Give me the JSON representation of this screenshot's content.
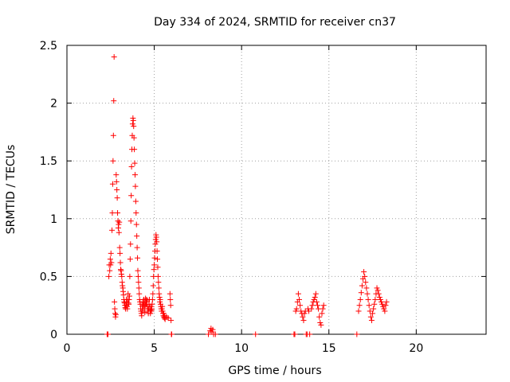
{
  "chart_data": {
    "type": "scatter",
    "title": "Day 334 of 2024, SRMTID for receiver cn37",
    "xlabel": "GPS time / hours",
    "ylabel": "SRMTID / TECUs",
    "xlim": [
      0,
      24
    ],
    "ylim": [
      0,
      2.5
    ],
    "xticks": [
      0,
      5,
      10,
      15,
      20
    ],
    "xtick_labels": [
      "0",
      "5",
      "10",
      "15",
      "20"
    ],
    "yticks": [
      0,
      0.5,
      1,
      1.5,
      2,
      2.5
    ],
    "ytick_labels": [
      "0",
      "0.5",
      "1",
      "1.5",
      "2",
      "2.5"
    ],
    "grid": true,
    "marker": "+",
    "color": "#ff0000",
    "series": [
      {
        "points": [
          [
            2.3,
            0.0
          ],
          [
            2.35,
            0.0
          ],
          [
            2.4,
            0.5
          ],
          [
            2.42,
            0.6
          ],
          [
            2.45,
            0.55
          ],
          [
            2.48,
            0.65
          ],
          [
            2.5,
            0.6
          ],
          [
            2.52,
            0.7
          ],
          [
            2.55,
            0.62
          ],
          [
            2.58,
            0.9
          ],
          [
            2.6,
            1.05
          ],
          [
            2.62,
            1.3
          ],
          [
            2.64,
            1.5
          ],
          [
            2.66,
            1.72
          ],
          [
            2.68,
            2.02
          ],
          [
            2.7,
            2.4
          ],
          [
            2.72,
            0.28
          ],
          [
            2.74,
            0.22
          ],
          [
            2.76,
            0.18
          ],
          [
            2.78,
            0.15
          ],
          [
            2.8,
            0.17
          ],
          [
            2.82,
            1.38
          ],
          [
            2.84,
            1.32
          ],
          [
            2.86,
            1.25
          ],
          [
            2.88,
            1.18
          ],
          [
            2.9,
            1.05
          ],
          [
            2.92,
            0.98
          ],
          [
            2.94,
            0.92
          ],
          [
            2.96,
            0.95
          ],
          [
            2.98,
            0.88
          ],
          [
            3.0,
            0.97
          ],
          [
            3.02,
            0.75
          ],
          [
            3.04,
            0.7
          ],
          [
            3.06,
            0.62
          ],
          [
            3.08,
            0.56
          ],
          [
            3.1,
            0.55
          ],
          [
            3.12,
            0.52
          ],
          [
            3.14,
            0.5
          ],
          [
            3.16,
            0.45
          ],
          [
            3.18,
            0.42
          ],
          [
            3.2,
            0.4
          ],
          [
            3.22,
            0.37
          ],
          [
            3.24,
            0.34
          ],
          [
            3.26,
            0.3
          ],
          [
            3.28,
            0.28
          ],
          [
            3.3,
            0.27
          ],
          [
            3.32,
            0.25
          ],
          [
            3.34,
            0.23
          ],
          [
            3.36,
            0.22
          ],
          [
            3.38,
            0.25
          ],
          [
            3.4,
            0.3
          ],
          [
            3.42,
            0.28
          ],
          [
            3.44,
            0.24
          ],
          [
            3.46,
            0.22
          ],
          [
            3.48,
            0.3
          ],
          [
            3.5,
            0.35
          ],
          [
            3.52,
            0.27
          ],
          [
            3.54,
            0.26
          ],
          [
            3.56,
            0.3
          ],
          [
            3.58,
            0.33
          ],
          [
            3.6,
            0.5
          ],
          [
            3.62,
            0.65
          ],
          [
            3.64,
            0.78
          ],
          [
            3.66,
            0.98
          ],
          [
            3.68,
            1.2
          ],
          [
            3.7,
            1.45
          ],
          [
            3.72,
            1.6
          ],
          [
            3.74,
            1.72
          ],
          [
            3.76,
            1.82
          ],
          [
            3.78,
            1.87
          ],
          [
            3.8,
            1.85
          ],
          [
            3.82,
            1.8
          ],
          [
            3.84,
            1.7
          ],
          [
            3.86,
            1.6
          ],
          [
            3.88,
            1.48
          ],
          [
            3.9,
            1.38
          ],
          [
            3.92,
            1.28
          ],
          [
            3.94,
            1.15
          ],
          [
            3.96,
            1.05
          ],
          [
            3.98,
            0.95
          ],
          [
            4.0,
            0.85
          ],
          [
            4.02,
            0.75
          ],
          [
            4.04,
            0.66
          ],
          [
            4.06,
            0.55
          ],
          [
            4.08,
            0.5
          ],
          [
            4.1,
            0.45
          ],
          [
            4.12,
            0.4
          ],
          [
            4.14,
            0.35
          ],
          [
            4.16,
            0.3
          ],
          [
            4.18,
            0.28
          ],
          [
            4.2,
            0.26
          ],
          [
            4.22,
            0.22
          ],
          [
            4.24,
            0.2
          ],
          [
            4.26,
            0.18
          ],
          [
            4.28,
            0.16
          ],
          [
            4.3,
            0.2
          ],
          [
            4.32,
            0.24
          ],
          [
            4.34,
            0.28
          ],
          [
            4.36,
            0.22
          ],
          [
            4.38,
            0.25
          ],
          [
            4.4,
            0.3
          ],
          [
            4.42,
            0.27
          ],
          [
            4.44,
            0.22
          ],
          [
            4.46,
            0.19
          ],
          [
            4.48,
            0.25
          ],
          [
            4.5,
            0.31
          ],
          [
            4.52,
            0.28
          ],
          [
            4.54,
            0.26
          ],
          [
            4.56,
            0.3
          ],
          [
            4.58,
            0.29
          ],
          [
            4.6,
            0.24
          ],
          [
            4.62,
            0.22
          ],
          [
            4.64,
            0.2
          ],
          [
            4.66,
            0.18
          ],
          [
            4.68,
            0.22
          ],
          [
            4.7,
            0.26
          ],
          [
            4.72,
            0.3
          ],
          [
            4.74,
            0.24
          ],
          [
            4.76,
            0.2
          ],
          [
            4.78,
            0.18
          ],
          [
            4.8,
            0.21
          ],
          [
            4.82,
            0.24
          ],
          [
            4.84,
            0.2
          ],
          [
            4.86,
            0.22
          ],
          [
            4.88,
            0.26
          ],
          [
            4.9,
            0.3
          ],
          [
            4.92,
            0.35
          ],
          [
            4.94,
            0.42
          ],
          [
            4.96,
            0.5
          ],
          [
            4.98,
            0.56
          ],
          [
            5.0,
            0.6
          ],
          [
            5.02,
            0.66
          ],
          [
            5.04,
            0.72
          ],
          [
            5.06,
            0.78
          ],
          [
            5.08,
            0.82
          ],
          [
            5.1,
            0.86
          ],
          [
            5.12,
            0.84
          ],
          [
            5.14,
            0.8
          ],
          [
            5.16,
            0.72
          ],
          [
            5.18,
            0.65
          ],
          [
            5.2,
            0.58
          ],
          [
            5.22,
            0.5
          ],
          [
            5.24,
            0.45
          ],
          [
            5.26,
            0.4
          ],
          [
            5.28,
            0.35
          ],
          [
            5.3,
            0.32
          ],
          [
            5.32,
            0.28
          ],
          [
            5.34,
            0.3
          ],
          [
            5.36,
            0.26
          ],
          [
            5.38,
            0.24
          ],
          [
            5.4,
            0.22
          ],
          [
            5.42,
            0.2
          ],
          [
            5.44,
            0.22
          ],
          [
            5.46,
            0.24
          ],
          [
            5.48,
            0.2
          ],
          [
            5.5,
            0.18
          ],
          [
            5.52,
            0.16
          ],
          [
            5.54,
            0.18
          ],
          [
            5.56,
            0.15
          ],
          [
            5.58,
            0.14
          ],
          [
            5.6,
            0.16
          ],
          [
            5.62,
            0.13
          ],
          [
            5.7,
            0.15
          ],
          [
            5.8,
            0.14
          ],
          [
            5.9,
            0.35
          ],
          [
            5.92,
            0.3
          ],
          [
            5.94,
            0.25
          ],
          [
            5.96,
            0.12
          ],
          [
            5.98,
            0.0
          ],
          [
            6.0,
            0.0
          ],
          [
            8.1,
            0.0
          ],
          [
            8.2,
            0.03
          ],
          [
            8.25,
            0.05
          ],
          [
            8.3,
            0.02
          ],
          [
            8.35,
            0.04
          ],
          [
            8.4,
            0.0
          ],
          [
            8.5,
            0.0
          ],
          [
            10.8,
            0.0
          ],
          [
            13.0,
            0.0
          ],
          [
            13.05,
            0.0
          ],
          [
            13.1,
            0.2
          ],
          [
            13.15,
            0.22
          ],
          [
            13.2,
            0.28
          ],
          [
            13.25,
            0.35
          ],
          [
            13.3,
            0.3
          ],
          [
            13.35,
            0.25
          ],
          [
            13.4,
            0.2
          ],
          [
            13.45,
            0.18
          ],
          [
            13.5,
            0.15
          ],
          [
            13.55,
            0.12
          ],
          [
            13.6,
            0.18
          ],
          [
            13.65,
            0.2
          ],
          [
            13.7,
            0.0
          ],
          [
            13.75,
            0.0
          ],
          [
            13.8,
            0.22
          ],
          [
            13.85,
            0.2
          ],
          [
            13.9,
            0.0
          ],
          [
            14.0,
            0.22
          ],
          [
            14.05,
            0.25
          ],
          [
            14.1,
            0.28
          ],
          [
            14.15,
            0.3
          ],
          [
            14.2,
            0.32
          ],
          [
            14.25,
            0.35
          ],
          [
            14.3,
            0.28
          ],
          [
            14.35,
            0.25
          ],
          [
            14.4,
            0.22
          ],
          [
            14.45,
            0.15
          ],
          [
            14.5,
            0.1
          ],
          [
            14.55,
            0.08
          ],
          [
            14.6,
            0.18
          ],
          [
            14.65,
            0.22
          ],
          [
            14.7,
            0.25
          ],
          [
            16.6,
            0.0
          ],
          [
            16.7,
            0.2
          ],
          [
            16.75,
            0.25
          ],
          [
            16.8,
            0.3
          ],
          [
            16.85,
            0.36
          ],
          [
            16.9,
            0.42
          ],
          [
            16.95,
            0.48
          ],
          [
            17.0,
            0.54
          ],
          [
            17.05,
            0.5
          ],
          [
            17.1,
            0.45
          ],
          [
            17.15,
            0.4
          ],
          [
            17.2,
            0.35
          ],
          [
            17.25,
            0.3
          ],
          [
            17.3,
            0.25
          ],
          [
            17.35,
            0.2
          ],
          [
            17.4,
            0.15
          ],
          [
            17.45,
            0.12
          ],
          [
            17.5,
            0.18
          ],
          [
            17.55,
            0.22
          ],
          [
            17.6,
            0.26
          ],
          [
            17.65,
            0.3
          ],
          [
            17.7,
            0.35
          ],
          [
            17.75,
            0.4
          ],
          [
            17.8,
            0.38
          ],
          [
            17.85,
            0.35
          ],
          [
            17.9,
            0.32
          ],
          [
            17.95,
            0.3
          ],
          [
            18.0,
            0.28
          ],
          [
            18.05,
            0.26
          ],
          [
            18.1,
            0.24
          ],
          [
            18.15,
            0.22
          ],
          [
            18.2,
            0.2
          ],
          [
            18.25,
            0.25
          ],
          [
            18.3,
            0.28
          ]
        ]
      }
    ]
  }
}
